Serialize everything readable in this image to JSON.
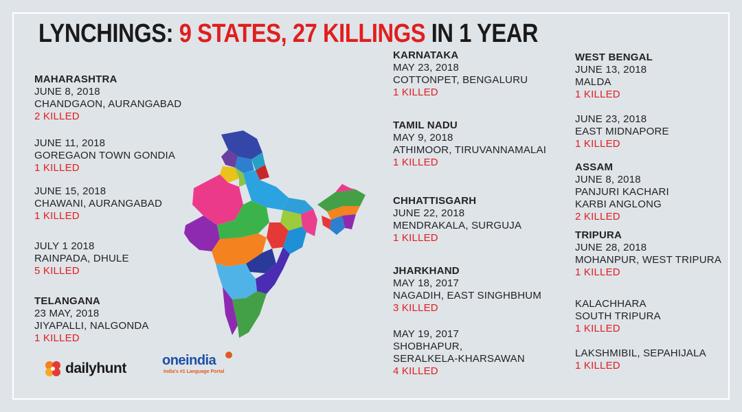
{
  "title": {
    "part1": "LYNCHINGS: ",
    "part2": "9 STATES, 27 KILLINGS",
    "part3": " IN 1 YEAR"
  },
  "colors": {
    "accent": "#e01e1e",
    "background": "#dfe4e9",
    "text": "#222222"
  },
  "left": {
    "maharashtra": {
      "state": "MAHARASHTRA",
      "e1": {
        "date": "JUNE 8, 2018",
        "place": "CHANDGAON, AURANGABAD",
        "killed": "2 KILLED"
      },
      "e2": {
        "date": "JUNE 11, 2018",
        "place": "GOREGAON TOWN GONDIA",
        "killed": "1 KILLED"
      },
      "e3": {
        "date": "JUNE 15, 2018",
        "place": "CHAWANI, AURANGABAD",
        "killed": "1 KILLED"
      },
      "e4": {
        "date": "JULY 1 2018",
        "place": "RAINPADA, DHULE",
        "killed": "5 KILLED"
      }
    },
    "telangana": {
      "state": "TELANGANA",
      "date": "23 MAY, 2018",
      "place": "JIYAPALLI, NALGONDA",
      "killed": "1 KILLED"
    }
  },
  "middle": {
    "karnataka": {
      "state": "KARNATAKA",
      "date": "MAY 23, 2018",
      "place": "COTTONPET, BENGALURU",
      "killed": "1 KILLED"
    },
    "tamilnadu": {
      "state": "TAMIL NADU",
      "date": "MAY 9, 2018",
      "place": "ATHIMOOR, TIRUVANNAMALAI",
      "killed": "1 KILLED"
    },
    "chhattisgarh": {
      "state": "CHHATTISGARH",
      "date": "JUNE 22, 2018",
      "place": "MENDRAKALA, SURGUJA",
      "killed": "1 KILLED"
    },
    "jharkhand": {
      "state": "JHARKHAND",
      "e1": {
        "date": "MAY 18, 2017",
        "place": "NAGADIH, EAST SINGHBHUM",
        "killed": "3 KILLED"
      },
      "e2": {
        "date": "MAY 19, 2017",
        "place1": "SHOBHAPUR,",
        "place2": "SERALKELA-KHARSAWAN",
        "killed": "4 KILLED"
      }
    }
  },
  "right": {
    "westbengal": {
      "state": "WEST BENGAL",
      "e1": {
        "date": "JUNE 13, 2018",
        "place": "MALDA",
        "killed": "1 KILLED"
      },
      "e2": {
        "date": "JUNE 23, 2018",
        "place": "EAST MIDNAPORE",
        "killed": "1 KILLED"
      }
    },
    "assam": {
      "state": "ASSAM",
      "date": "JUNE 8, 2018",
      "place1": "PANJURI KACHARI",
      "place2": "KARBI ANGLONG",
      "killed": "2 KILLED"
    },
    "tripura": {
      "state": "TRIPURA",
      "e1": {
        "date": "JUNE 28, 2018",
        "place": "MOHANPUR, WEST TRIPURA",
        "killed": "1 KILLED"
      },
      "e2": {
        "place1": "KALACHHARA",
        "place2": "SOUTH TRIPURA",
        "killed": "1 KILLED"
      },
      "e3": {
        "place": "LAKSHMIBIL, SEPAHIJALA",
        "killed": "1 KILLED"
      }
    }
  },
  "logos": {
    "dailyhunt": "dailyhunt",
    "oneindia": "oneindia",
    "oneindia_badge": "1",
    "oneindia_tag": "India's #1 Language Portal"
  },
  "map": {
    "icon": "india-map-icon"
  }
}
